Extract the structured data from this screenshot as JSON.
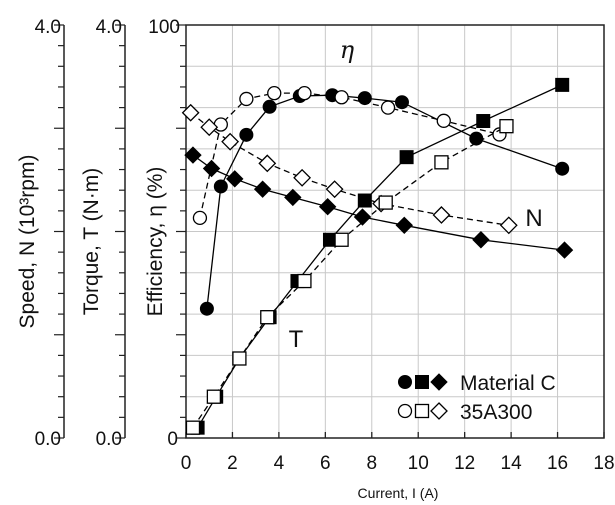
{
  "chart_data": {
    "type": "line",
    "title": "",
    "xlabel": "Current, I (A)",
    "xlim": [
      0,
      18
    ],
    "x_ticks": [
      "0",
      "2",
      "4",
      "6",
      "8",
      "10",
      "12",
      "14",
      "16",
      "18"
    ],
    "grid": true,
    "legend_position": "bottom-right",
    "y_axes": [
      {
        "id": "speed",
        "label": "Speed, N (10³rpm)",
        "range": [
          0.0,
          4.0
        ],
        "top_tick": "4.0",
        "bottom_tick": "0.0"
      },
      {
        "id": "torque",
        "label": "Torque, T (N·m)",
        "range": [
          0.0,
          4.0
        ],
        "top_tick": "4.0",
        "bottom_tick": "0.0"
      },
      {
        "id": "efficiency",
        "label": "Efficiency, η (%)",
        "range": [
          0,
          100
        ],
        "top_tick": "100",
        "bottom_tick": "0"
      }
    ],
    "series": [
      {
        "name": "Material C",
        "quantity": "efficiency",
        "axis": "efficiency",
        "marker": "filled-circle",
        "dashed": false,
        "points": [
          [
            0.9,
            31.3
          ],
          [
            1.5,
            60.9
          ],
          [
            2.6,
            73.4
          ],
          [
            3.6,
            80.2
          ],
          [
            4.9,
            82.8
          ],
          [
            6.3,
            83.0
          ],
          [
            7.7,
            82.3
          ],
          [
            9.3,
            81.3
          ],
          [
            12.5,
            72.5
          ],
          [
            16.2,
            65.2
          ]
        ]
      },
      {
        "name": "Material C",
        "quantity": "speed",
        "axis": "speed",
        "marker": "filled-diamond",
        "dashed": false,
        "points": [
          [
            0.3,
            2.74
          ],
          [
            1.1,
            2.61
          ],
          [
            2.1,
            2.51
          ],
          [
            3.3,
            2.41
          ],
          [
            4.6,
            2.33
          ],
          [
            6.1,
            2.24
          ],
          [
            7.6,
            2.14
          ],
          [
            9.4,
            2.06
          ],
          [
            12.7,
            1.92
          ],
          [
            16.3,
            1.82
          ]
        ]
      },
      {
        "name": "Material C",
        "quantity": "torque",
        "axis": "torque",
        "marker": "filled-square",
        "dashed": false,
        "points": [
          [
            0.5,
            0.1
          ],
          [
            1.3,
            0.4
          ],
          [
            2.3,
            0.77
          ],
          [
            3.6,
            1.17
          ],
          [
            4.8,
            1.52
          ],
          [
            6.2,
            1.92
          ],
          [
            7.7,
            2.3
          ],
          [
            9.5,
            2.72
          ],
          [
            12.8,
            3.07
          ],
          [
            16.2,
            3.42
          ]
        ]
      },
      {
        "name": "35A300",
        "quantity": "efficiency",
        "axis": "efficiency",
        "marker": "open-circle",
        "dashed": true,
        "points": [
          [
            0.6,
            53.3
          ],
          [
            1.5,
            75.9
          ],
          [
            2.6,
            82.1
          ],
          [
            3.8,
            83.5
          ],
          [
            5.1,
            83.5
          ],
          [
            6.7,
            82.5
          ],
          [
            8.7,
            80.0
          ],
          [
            11.1,
            76.8
          ],
          [
            13.5,
            73.5
          ]
        ]
      },
      {
        "name": "35A300",
        "quantity": "speed",
        "axis": "speed",
        "marker": "open-diamond",
        "dashed": true,
        "points": [
          [
            0.2,
            3.15
          ],
          [
            1.0,
            3.01
          ],
          [
            1.9,
            2.87
          ],
          [
            3.5,
            2.66
          ],
          [
            5.0,
            2.52
          ],
          [
            6.4,
            2.41
          ],
          [
            8.4,
            2.27
          ],
          [
            11.0,
            2.16
          ],
          [
            13.9,
            2.06
          ]
        ]
      },
      {
        "name": "35A300",
        "quantity": "torque",
        "axis": "torque",
        "marker": "open-square",
        "dashed": true,
        "points": [
          [
            0.3,
            0.1
          ],
          [
            1.2,
            0.4
          ],
          [
            2.3,
            0.77
          ],
          [
            3.5,
            1.17
          ],
          [
            5.1,
            1.52
          ],
          [
            6.7,
            1.92
          ],
          [
            8.6,
            2.28
          ],
          [
            11.0,
            2.67
          ],
          [
            13.8,
            3.02
          ]
        ]
      }
    ],
    "annotations": {
      "eta_label": "η",
      "speed_label": "N",
      "torque_label": "T"
    },
    "legend": [
      {
        "label": "Material C",
        "markers": [
          "filled-circle",
          "filled-square",
          "filled-diamond"
        ]
      },
      {
        "label": "35A300",
        "markers": [
          "open-circle",
          "open-square",
          "open-diamond"
        ]
      }
    ]
  }
}
